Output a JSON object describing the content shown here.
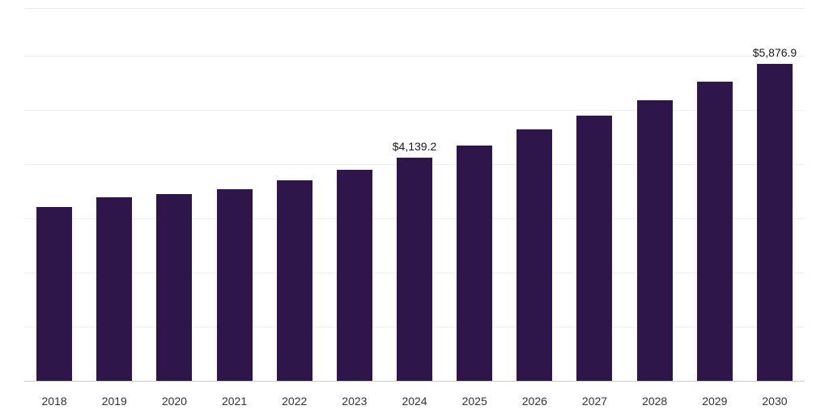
{
  "chart_data": {
    "type": "bar",
    "title": "",
    "xlabel": "",
    "ylabel": "",
    "categories": [
      "2018",
      "2019",
      "2020",
      "2021",
      "2022",
      "2023",
      "2024",
      "2025",
      "2026",
      "2027",
      "2028",
      "2029",
      "2030"
    ],
    "values": [
      3220,
      3410,
      3460,
      3560,
      3725,
      3920,
      4139.2,
      4365,
      4660,
      4910,
      5195,
      5535,
      5876.9
    ],
    "data_labels": {
      "2024": "$4,139.2",
      "2030": "$5,876.9"
    },
    "ylim": [
      0,
      6900
    ],
    "gridline_step": 1000,
    "grid": "horizontal-faint",
    "y_axis_tick_labels": "hidden",
    "legend_position": "none",
    "bar_color": "#2e164a",
    "axis_line_color": "#cccccc",
    "label_text_color": "#1a1a1a",
    "tick_text_color": "#333333"
  }
}
